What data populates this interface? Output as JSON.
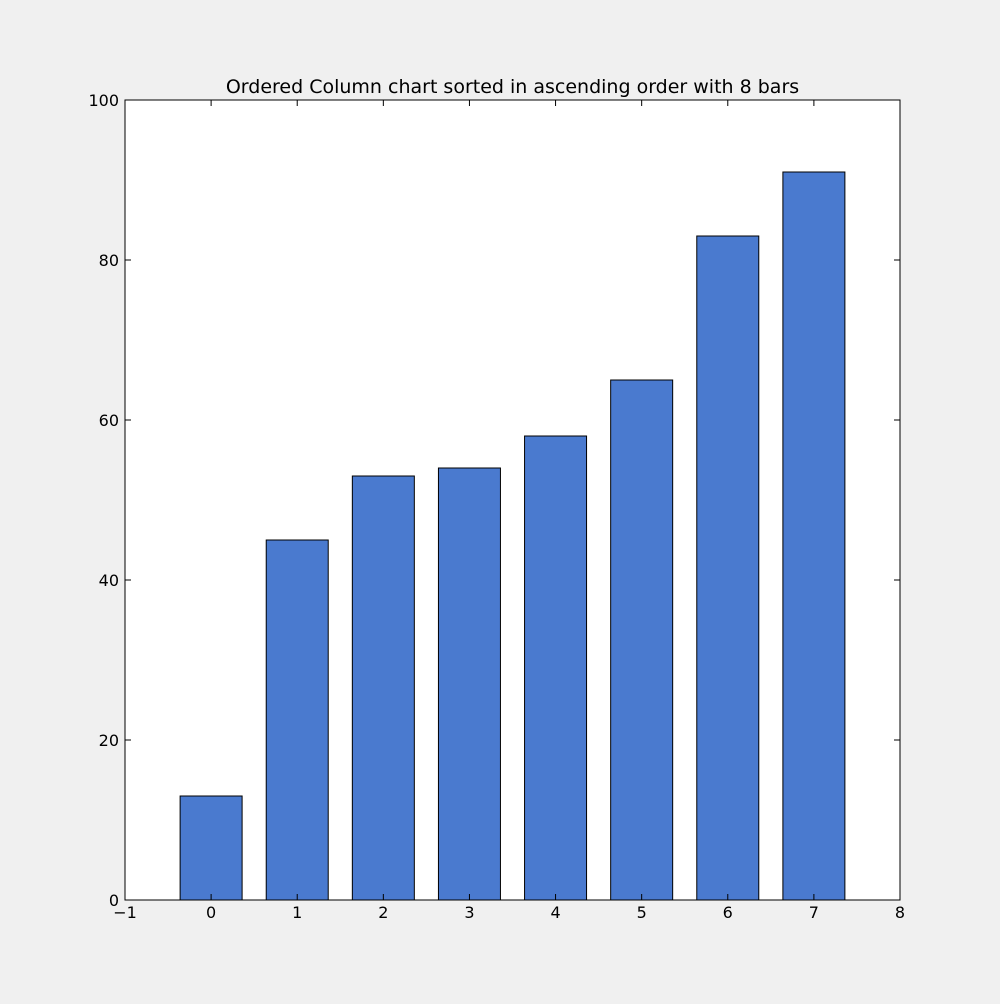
{
  "chart_data": {
    "type": "bar",
    "title": "Ordered Column chart sorted in ascending order with 8 bars",
    "xlabel": "",
    "ylabel": "",
    "categories": [
      "0",
      "1",
      "2",
      "3",
      "4",
      "5",
      "6",
      "7"
    ],
    "x": [
      0,
      1,
      2,
      3,
      4,
      5,
      6,
      7
    ],
    "values": [
      13,
      45,
      53,
      54,
      58,
      65,
      83,
      91
    ],
    "xlim": [
      -1,
      8
    ],
    "ylim": [
      0,
      100
    ],
    "xticks": [
      -1,
      0,
      1,
      2,
      3,
      4,
      5,
      6,
      7,
      8
    ],
    "xtick_labels": [
      "−1",
      "0",
      "1",
      "2",
      "3",
      "4",
      "5",
      "6",
      "7",
      "8"
    ],
    "yticks": [
      0,
      20,
      40,
      60,
      80,
      100
    ],
    "ytick_labels": [
      "0",
      "20",
      "40",
      "60",
      "80",
      "100"
    ],
    "grid": false,
    "legend": "none",
    "colors": {
      "bar": "#4a7acf",
      "edge": "#000000",
      "background": "#f0f0f0",
      "plot_area": "#ffffff"
    }
  }
}
